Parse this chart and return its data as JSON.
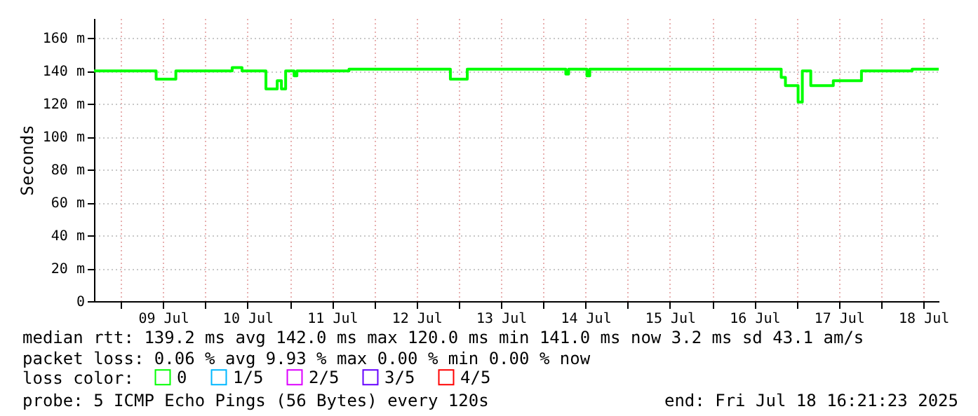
{
  "chart_data": {
    "type": "step",
    "ylabel": "Seconds",
    "legend_title": "loss color:",
    "legend": "bottom",
    "x": [
      "2025-07-08T16:21",
      "2025-07-09T10:00",
      "2025-07-09T15:36",
      "2025-07-10T07:36",
      "2025-07-10T10:24",
      "2025-07-10T17:12",
      "2025-07-10T20:24",
      "2025-07-10T21:36",
      "2025-07-10T22:48",
      "2025-07-11T01:12",
      "2025-07-11T02:00",
      "2025-07-11T16:48",
      "2025-07-12T21:36",
      "2025-07-13T02:24",
      "2025-07-14T06:24",
      "2025-07-14T07:12",
      "2025-07-14T12:24",
      "2025-07-14T13:12",
      "2025-07-16T19:36",
      "2025-07-16T20:48",
      "2025-07-17T00:24",
      "2025-07-17T01:36",
      "2025-07-17T04:00",
      "2025-07-17T10:24",
      "2025-07-17T18:24",
      "2025-07-18T08:48",
      "2025-07-18T16:21"
    ],
    "series": [
      {
        "name": "0",
        "color": "#00ff00",
        "values": [
          140,
          135,
          140,
          142,
          140,
          129,
          134,
          129,
          140,
          137,
          140,
          141,
          135,
          141,
          138,
          141,
          137,
          141,
          136,
          131,
          121,
          140,
          131,
          134,
          140,
          141,
          141
        ]
      },
      {
        "name": "1/5",
        "color": "#00b8ff",
        "values": [
          null,
          null,
          null,
          null,
          null,
          null,
          null,
          null,
          null,
          null,
          null,
          null,
          null,
          null,
          null,
          null,
          null,
          null,
          null,
          null,
          null,
          null,
          null,
          null,
          null,
          null,
          null
        ]
      },
      {
        "name": "2/5",
        "color": "#dd00ff",
        "values": [
          null,
          null,
          null,
          null,
          null,
          null,
          null,
          null,
          null,
          null,
          null,
          null,
          null,
          null,
          null,
          null,
          null,
          null,
          null,
          null,
          null,
          null,
          null,
          null,
          null,
          null,
          null
        ]
      },
      {
        "name": "3/5",
        "color": "#6600ff",
        "values": [
          null,
          null,
          null,
          null,
          null,
          null,
          null,
          null,
          null,
          null,
          null,
          null,
          null,
          null,
          null,
          null,
          null,
          null,
          null,
          null,
          null,
          null,
          null,
          null,
          null,
          null,
          null
        ]
      },
      {
        "name": "4/5",
        "color": "#ff0000",
        "values": [
          null,
          null,
          null,
          null,
          null,
          null,
          null,
          null,
          null,
          null,
          null,
          null,
          null,
          null,
          null,
          null,
          null,
          null,
          null,
          null,
          null,
          null,
          null,
          null,
          null,
          null,
          null
        ]
      }
    ],
    "xlim": [
      "2025-07-08T16:21",
      "2025-07-18T16:21"
    ],
    "xticks": [
      {
        "value": "2025-07-09T00:00",
        "label": null
      },
      {
        "value": "2025-07-09T12:00",
        "label": "09 Jul"
      },
      {
        "value": "2025-07-10T00:00",
        "label": null
      },
      {
        "value": "2025-07-10T12:00",
        "label": "10 Jul"
      },
      {
        "value": "2025-07-11T00:00",
        "label": null
      },
      {
        "value": "2025-07-11T12:00",
        "label": "11 Jul"
      },
      {
        "value": "2025-07-12T00:00",
        "label": null
      },
      {
        "value": "2025-07-12T12:00",
        "label": "12 Jul"
      },
      {
        "value": "2025-07-13T00:00",
        "label": null
      },
      {
        "value": "2025-07-13T12:00",
        "label": "13 Jul"
      },
      {
        "value": "2025-07-14T00:00",
        "label": null
      },
      {
        "value": "2025-07-14T12:00",
        "label": "14 Jul"
      },
      {
        "value": "2025-07-15T00:00",
        "label": null
      },
      {
        "value": "2025-07-15T12:00",
        "label": "15 Jul"
      },
      {
        "value": "2025-07-16T00:00",
        "label": null
      },
      {
        "value": "2025-07-16T12:00",
        "label": "16 Jul"
      },
      {
        "value": "2025-07-17T00:00",
        "label": null
      },
      {
        "value": "2025-07-17T12:00",
        "label": "17 Jul"
      },
      {
        "value": "2025-07-18T00:00",
        "label": null
      },
      {
        "value": "2025-07-18T12:00",
        "label": "18 Jul"
      }
    ],
    "ylim": [
      0,
      172
    ],
    "yticks": [
      0,
      {
        "value": 20,
        "label": "20 m"
      },
      {
        "value": 40,
        "label": "40 m"
      },
      {
        "value": 60,
        "label": "60 m"
      },
      {
        "value": 80,
        "label": "80 m"
      },
      {
        "value": 100,
        "label": "100 m"
      },
      {
        "value": 120,
        "label": "120 m"
      },
      {
        "value": 140,
        "label": "140 m"
      },
      {
        "value": 160,
        "label": "160 m"
      }
    ],
    "grid": true,
    "annotations": [
      "median rtt:  139.2 ms avg  142.0 ms max  120.0 ms min  141.0 ms now  3.2 ms sd  43.1   am/s",
      "packet loss: 0.06 % avg  9.93 % max  0.00 % min  0.00 % now",
      "probe:       5 ICMP Echo Pings (56 Bytes) every 120s",
      "end: Fri Jul 18 16:21:23 2025"
    ]
  }
}
